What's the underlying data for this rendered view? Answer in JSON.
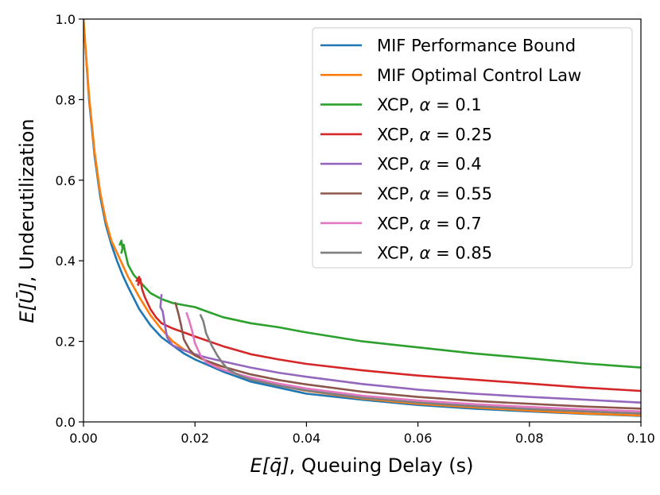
{
  "chart_data": {
    "type": "line",
    "title": "",
    "xlabel_math": "E[q̄]",
    "xlabel_text": ", Queuing Delay (s)",
    "ylabel_math": "E[Ū]",
    "ylabel_text": ", Underutilization",
    "xlim": [
      0.0,
      0.1
    ],
    "ylim": [
      0.0,
      1.0
    ],
    "xticks": [
      0.0,
      0.02,
      0.04,
      0.06,
      0.08,
      0.1
    ],
    "xtick_labels": [
      "0.00",
      "0.02",
      "0.04",
      "0.06",
      "0.08",
      "0.10"
    ],
    "yticks": [
      0.0,
      0.2,
      0.4,
      0.6,
      0.8,
      1.0
    ],
    "ytick_labels": [
      "0.0",
      "0.2",
      "0.4",
      "0.6",
      "0.8",
      "1.0"
    ],
    "grid": false,
    "legend_position": "top-right",
    "series": [
      {
        "name": "MIF Performance Bound",
        "legend_prefix": "MIF Performance Bound",
        "alpha": "",
        "color": "#1f77b4",
        "x": [
          0.0,
          0.001,
          0.002,
          0.003,
          0.004,
          0.005,
          0.006,
          0.007,
          0.008,
          0.01,
          0.012,
          0.014,
          0.016,
          0.018,
          0.02,
          0.025,
          0.03,
          0.035,
          0.04,
          0.05,
          0.06,
          0.07,
          0.08,
          0.09,
          0.1
        ],
        "y": [
          1.0,
          0.8,
          0.66,
          0.56,
          0.49,
          0.44,
          0.4,
          0.365,
          0.335,
          0.28,
          0.24,
          0.21,
          0.19,
          0.17,
          0.155,
          0.125,
          0.1,
          0.085,
          0.07,
          0.055,
          0.042,
          0.033,
          0.026,
          0.02,
          0.015
        ]
      },
      {
        "name": "MIF Optimal Control Law",
        "legend_prefix": "MIF Optimal Control Law",
        "alpha": "",
        "color": "#ff7f0e",
        "x": [
          0.0,
          0.001,
          0.002,
          0.003,
          0.004,
          0.005,
          0.006,
          0.007,
          0.008,
          0.01,
          0.012,
          0.014,
          0.016,
          0.018,
          0.02,
          0.025,
          0.03,
          0.035,
          0.04,
          0.05,
          0.06,
          0.07,
          0.08,
          0.09,
          0.1
        ],
        "y": [
          1.0,
          0.81,
          0.67,
          0.57,
          0.5,
          0.45,
          0.42,
          0.39,
          0.36,
          0.31,
          0.265,
          0.23,
          0.2,
          0.18,
          0.165,
          0.13,
          0.107,
          0.09,
          0.077,
          0.058,
          0.045,
          0.036,
          0.028,
          0.021,
          0.016
        ]
      },
      {
        "name": "XCP, α = 0.1",
        "legend_prefix": "XCP, ",
        "alpha": "0.1",
        "color": "#2ca02c",
        "x": [
          0.0065,
          0.0068,
          0.007,
          0.0068,
          0.0072,
          0.0075,
          0.008,
          0.009,
          0.01,
          0.012,
          0.014,
          0.016,
          0.018,
          0.02,
          0.022,
          0.025,
          0.03,
          0.035,
          0.04,
          0.05,
          0.06,
          0.07,
          0.08,
          0.09,
          0.1
        ],
        "y": [
          0.44,
          0.45,
          0.43,
          0.42,
          0.44,
          0.42,
          0.39,
          0.365,
          0.35,
          0.32,
          0.305,
          0.295,
          0.29,
          0.285,
          0.275,
          0.26,
          0.245,
          0.235,
          0.222,
          0.2,
          0.185,
          0.17,
          0.158,
          0.145,
          0.135
        ]
      },
      {
        "name": "XCP, α = 0.25",
        "legend_prefix": "XCP, ",
        "alpha": "0.25",
        "color": "#d62728",
        "x": [
          0.0095,
          0.01,
          0.0098,
          0.0102,
          0.0105,
          0.011,
          0.012,
          0.013,
          0.014,
          0.016,
          0.018,
          0.02,
          0.025,
          0.03,
          0.035,
          0.04,
          0.05,
          0.06,
          0.07,
          0.08,
          0.09,
          0.1
        ],
        "y": [
          0.35,
          0.36,
          0.34,
          0.355,
          0.33,
          0.31,
          0.28,
          0.26,
          0.245,
          0.232,
          0.222,
          0.212,
          0.188,
          0.168,
          0.155,
          0.144,
          0.128,
          0.115,
          0.105,
          0.095,
          0.085,
          0.077
        ]
      },
      {
        "name": "XCP, α = 0.4",
        "legend_prefix": "XCP, ",
        "alpha": "0.4",
        "color": "#9467bd",
        "x": [
          0.014,
          0.0138,
          0.0142,
          0.0145,
          0.015,
          0.016,
          0.018,
          0.02,
          0.022,
          0.025,
          0.03,
          0.035,
          0.04,
          0.05,
          0.06,
          0.07,
          0.08,
          0.09,
          0.1
        ],
        "y": [
          0.315,
          0.285,
          0.275,
          0.25,
          0.21,
          0.19,
          0.178,
          0.168,
          0.16,
          0.15,
          0.135,
          0.122,
          0.112,
          0.094,
          0.08,
          0.07,
          0.062,
          0.055,
          0.048
        ]
      },
      {
        "name": "XCP, α = 0.55",
        "legend_prefix": "XCP, ",
        "alpha": "0.55",
        "color": "#8c564b",
        "x": [
          0.0165,
          0.017,
          0.0175,
          0.018,
          0.019,
          0.02,
          0.022,
          0.025,
          0.03,
          0.035,
          0.04,
          0.05,
          0.06,
          0.07,
          0.08,
          0.09,
          0.1
        ],
        "y": [
          0.295,
          0.27,
          0.24,
          0.205,
          0.18,
          0.165,
          0.152,
          0.137,
          0.118,
          0.104,
          0.093,
          0.075,
          0.062,
          0.052,
          0.045,
          0.038,
          0.033
        ]
      },
      {
        "name": "XCP, α = 0.7",
        "legend_prefix": "XCP, ",
        "alpha": "0.7",
        "color": "#e377c2",
        "x": [
          0.0185,
          0.019,
          0.0195,
          0.02,
          0.021,
          0.022,
          0.024,
          0.026,
          0.03,
          0.035,
          0.04,
          0.05,
          0.06,
          0.07,
          0.08,
          0.09,
          0.1
        ],
        "y": [
          0.27,
          0.25,
          0.225,
          0.195,
          0.165,
          0.148,
          0.135,
          0.125,
          0.11,
          0.095,
          0.083,
          0.065,
          0.053,
          0.044,
          0.037,
          0.031,
          0.026
        ]
      },
      {
        "name": "XCP, α = 0.85",
        "legend_prefix": "XCP, ",
        "alpha": "0.85",
        "color": "#7f7f7f",
        "x": [
          0.021,
          0.0215,
          0.022,
          0.023,
          0.024,
          0.025,
          0.026,
          0.028,
          0.03,
          0.035,
          0.04,
          0.05,
          0.06,
          0.07,
          0.08,
          0.09,
          0.1
        ],
        "y": [
          0.265,
          0.25,
          0.22,
          0.19,
          0.165,
          0.145,
          0.13,
          0.115,
          0.105,
          0.09,
          0.078,
          0.06,
          0.048,
          0.039,
          0.032,
          0.026,
          0.021
        ]
      }
    ]
  }
}
